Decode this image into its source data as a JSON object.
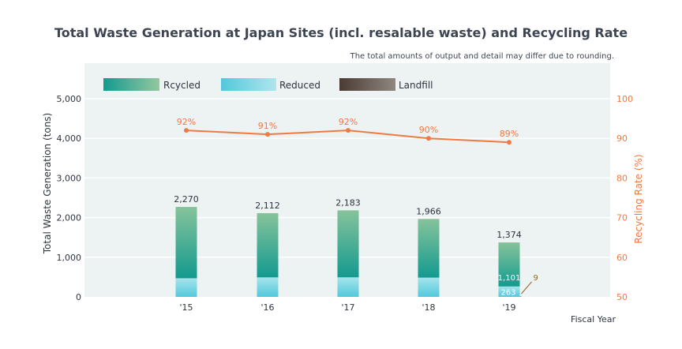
{
  "chart_data": {
    "type": "bar",
    "title": "Total Waste Generation at Japan Sites (incl. resalable waste) and Recycling Rate",
    "note": "The total amounts of output and detail may differ due to rounding.",
    "xlabel": "Fiscal Year",
    "ylabel": "Total Waste Generation (tons)",
    "y2label": "Recycling Rate (%)",
    "ylim": [
      0,
      5000
    ],
    "y2lim": [
      50,
      100
    ],
    "yticks": [
      "0",
      "1,000",
      "2,000",
      "3,000",
      "4,000",
      "5,000"
    ],
    "y2ticks": [
      "50",
      "60",
      "70",
      "80",
      "90",
      "100"
    ],
    "categories": [
      "'15",
      "'16",
      "'17",
      "'18",
      "'19"
    ],
    "series": [
      {
        "name": "Rcycled",
        "values": [
          1800,
          1620,
          1690,
          1480,
          1101
        ],
        "color": "#139a8f"
      },
      {
        "name": "Reduced",
        "values": [
          470,
          492,
          493,
          486,
          263
        ],
        "color": "#5ecde0"
      },
      {
        "name": "Landfill",
        "values": [
          0,
          0,
          0,
          0,
          9
        ],
        "color": "#5a4a42"
      }
    ],
    "totals": [
      2270,
      2112,
      2183,
      1966,
      1374
    ],
    "total_labels": [
      "2,270",
      "2,112",
      "2,183",
      "1,966",
      "1,374"
    ],
    "segment_labels": [
      {
        "category": "'19",
        "series": "Rcycled",
        "label": "1,101"
      },
      {
        "category": "'19",
        "series": "Reduced",
        "label": "263"
      },
      {
        "category": "'19",
        "series": "Landfill",
        "label": "9"
      }
    ],
    "recycling_rate": {
      "name": "Recycling Rate",
      "values": [
        92,
        91,
        92,
        90,
        89
      ],
      "labels": [
        "92%",
        "91%",
        "92%",
        "90%",
        "89%"
      ],
      "color": "#f07a43"
    },
    "legend_position": "top-left",
    "grid": true
  }
}
